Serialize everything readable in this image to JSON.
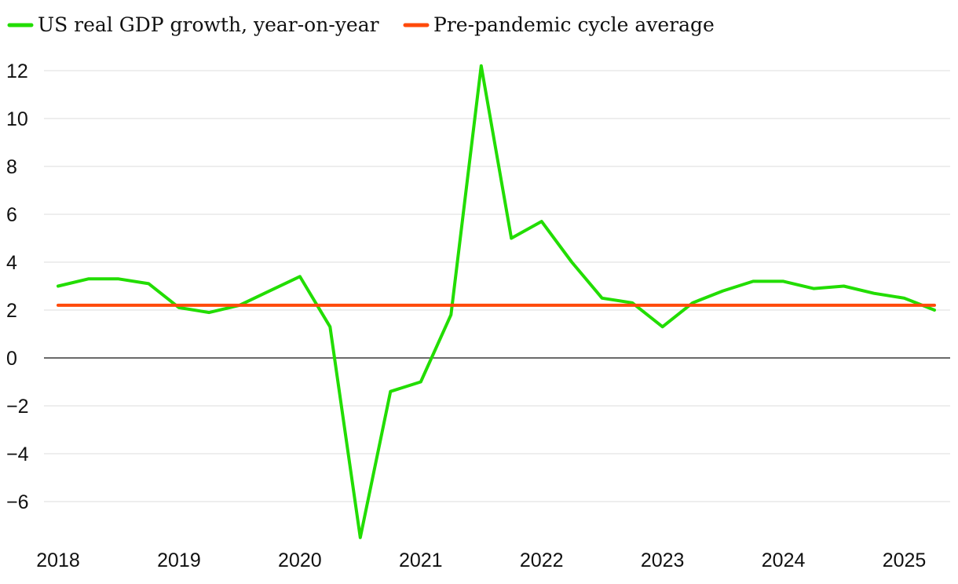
{
  "chart_data": {
    "type": "line",
    "title": "",
    "xlabel": "",
    "ylabel": "",
    "ylim": [
      -7.5,
      12
    ],
    "yticks": [
      12,
      10,
      8,
      6,
      4,
      2,
      0,
      -2,
      -4,
      -6
    ],
    "ytick_labels": [
      "12",
      "10",
      "8",
      "6",
      "4",
      "2",
      "0",
      "−2",
      "−4",
      "−6"
    ],
    "xlim": [
      2018,
      2025.25
    ],
    "xticks": [
      "2018",
      "2019",
      "2020",
      "2021",
      "2022",
      "2023",
      "2024",
      "2025"
    ],
    "grid": true,
    "legend_position": "top-left",
    "series": [
      {
        "name": "US real GDP growth, year-on-year",
        "color": "#22dd00",
        "x": [
          2018.0,
          2018.25,
          2018.5,
          2018.75,
          2019.0,
          2019.25,
          2019.5,
          2019.75,
          2020.0,
          2020.25,
          2020.5,
          2020.75,
          2021.0,
          2021.25,
          2021.5,
          2021.75,
          2022.0,
          2022.25,
          2022.5,
          2022.75,
          2023.0,
          2023.25,
          2023.5,
          2023.75,
          2024.0,
          2024.25,
          2024.5,
          2024.75,
          2025.0,
          2025.25
        ],
        "values": [
          3.0,
          3.3,
          3.3,
          3.1,
          2.1,
          1.9,
          2.2,
          2.8,
          3.4,
          1.3,
          -7.5,
          -1.4,
          -1.0,
          1.8,
          12.2,
          5.0,
          5.7,
          4.0,
          2.5,
          2.3,
          1.3,
          2.3,
          2.8,
          3.2,
          3.2,
          2.9,
          3.0,
          2.7,
          2.5,
          2.0
        ]
      },
      {
        "name": "Pre-pandemic cycle average",
        "color": "#ff4a0a",
        "x": [
          2018.0,
          2025.25
        ],
        "values": [
          2.2,
          2.2
        ]
      }
    ]
  }
}
